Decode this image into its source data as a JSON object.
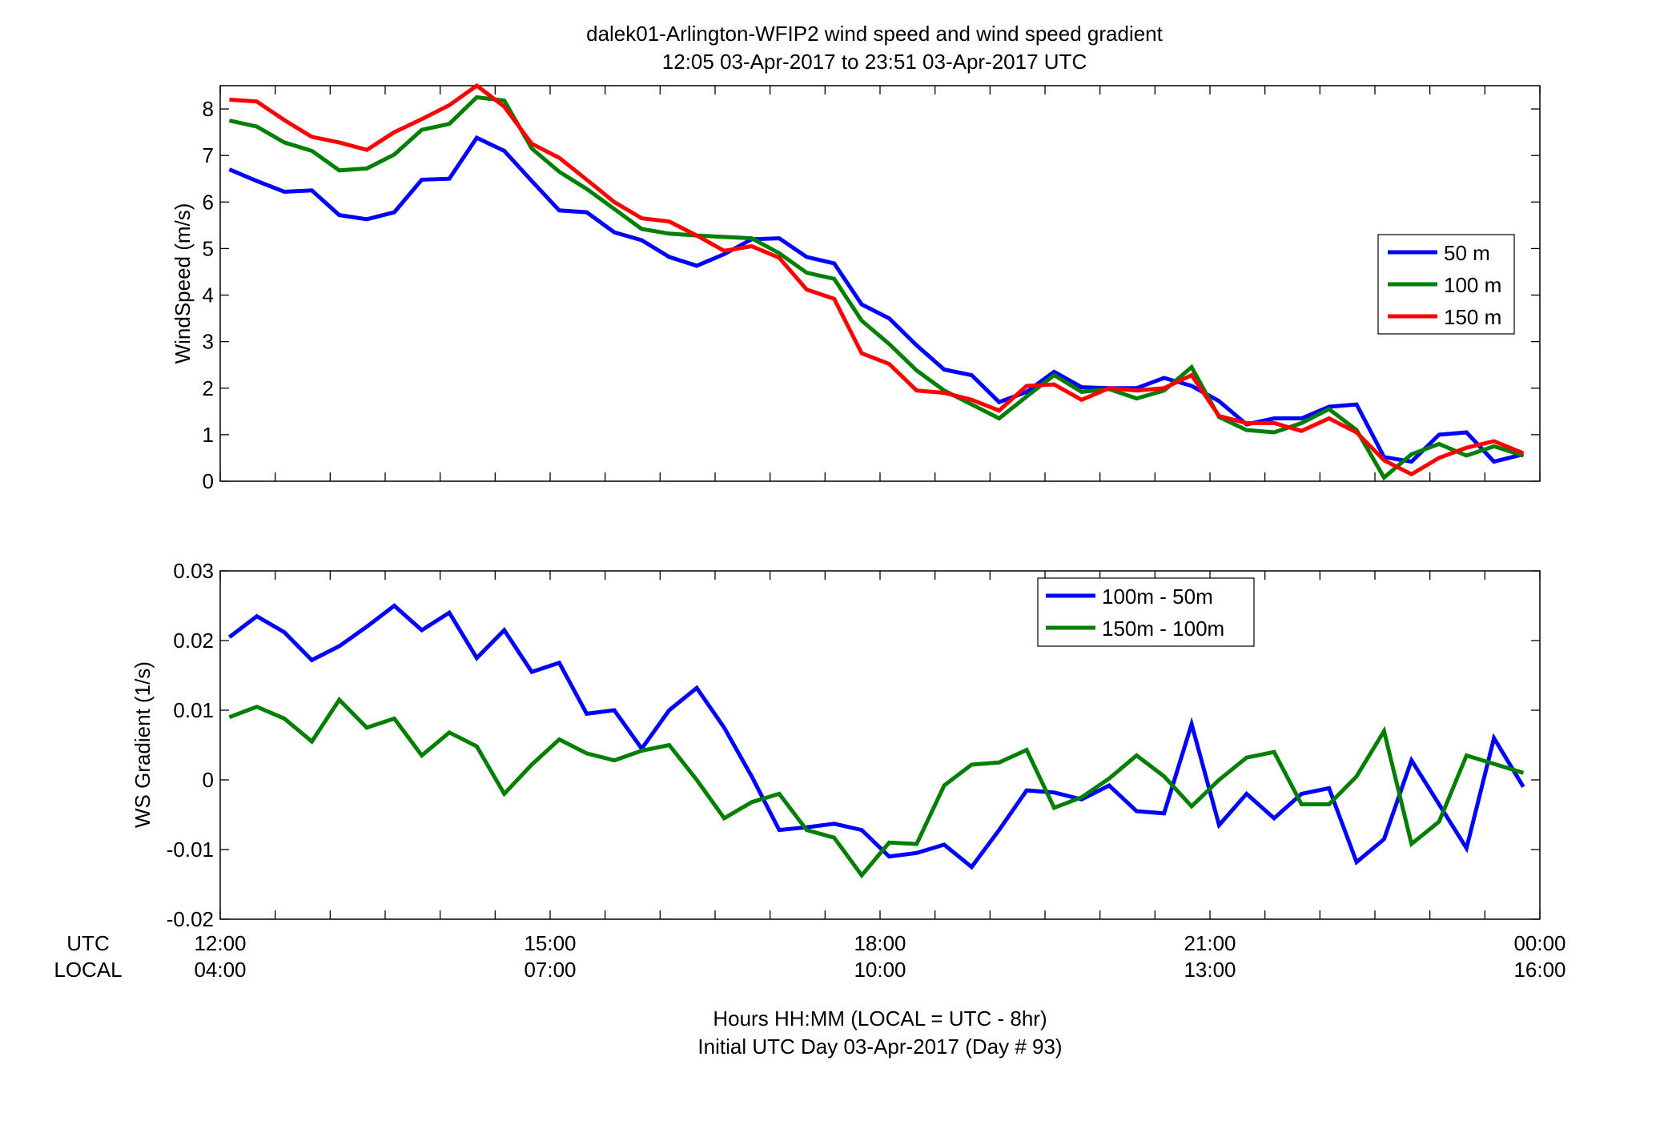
{
  "title": {
    "line1": "dalek01-Arlington-WFIP2  wind speed and wind speed gradient",
    "line2": "12:05 03-Apr-2017 to 23:51 03-Apr-2017  UTC"
  },
  "xaxis": {
    "row_label_utc": "UTC",
    "row_label_local": "LOCAL",
    "utc_ticks": [
      "12:00",
      "15:00",
      "18:00",
      "21:00",
      "00:00"
    ],
    "local_ticks": [
      "04:00",
      "07:00",
      "10:00",
      "13:00",
      "16:00"
    ],
    "xlabel_line1": "Hours HH:MM  (LOCAL = UTC - 8hr)",
    "xlabel_line2": "Initial UTC Day 03-Apr-2017 (Day # 93)"
  },
  "colors": {
    "blue": "#0000ff",
    "green": "#007f00",
    "red": "#ff0000"
  },
  "chart_data": [
    {
      "type": "line",
      "ylabel": "WindSpeed (m/s)",
      "xlim": [
        12,
        24
      ],
      "ylim": [
        0,
        8.5
      ],
      "yticks": [
        0,
        1,
        2,
        3,
        4,
        5,
        6,
        7,
        8
      ],
      "xticks": [
        12,
        12.5,
        13,
        13.5,
        14,
        14.5,
        15,
        15.5,
        16,
        16.5,
        17,
        17.5,
        18,
        18.5,
        19,
        19.5,
        20,
        20.5,
        21,
        21.5,
        22,
        22.5,
        23,
        23.5,
        24
      ],
      "legend_position": "right",
      "x": [
        12.083,
        12.333,
        12.583,
        12.833,
        13.083,
        13.333,
        13.583,
        13.833,
        14.083,
        14.333,
        14.583,
        14.833,
        15.083,
        15.333,
        15.583,
        15.833,
        16.083,
        16.333,
        16.583,
        16.833,
        17.083,
        17.333,
        17.583,
        17.833,
        18.083,
        18.333,
        18.583,
        18.833,
        19.083,
        19.333,
        19.583,
        19.833,
        20.083,
        20.333,
        20.583,
        20.833,
        21.083,
        21.333,
        21.583,
        21.833,
        22.083,
        22.333,
        22.583,
        22.833,
        23.083,
        23.333,
        23.583,
        23.85
      ],
      "series": [
        {
          "name": "50 m",
          "color": "#0000ff",
          "values": [
            6.7,
            6.45,
            6.22,
            6.25,
            5.72,
            5.63,
            5.78,
            6.48,
            6.5,
            7.38,
            7.1,
            6.45,
            5.82,
            5.78,
            5.35,
            5.18,
            4.82,
            4.63,
            4.88,
            5.2,
            5.22,
            4.82,
            4.68,
            3.8,
            3.5,
            2.92,
            2.4,
            2.28,
            1.7,
            1.92,
            2.35,
            2.02,
            2.0,
            2.0,
            2.22,
            2.05,
            1.72,
            1.22,
            1.35,
            1.35,
            1.6,
            1.65,
            0.52,
            0.42,
            1.0,
            1.05,
            0.42,
            0.58
          ]
        },
        {
          "name": "100 m",
          "color": "#007f00",
          "values": [
            7.75,
            7.62,
            7.28,
            7.1,
            6.68,
            6.72,
            7.02,
            7.55,
            7.68,
            8.25,
            8.18,
            7.15,
            6.65,
            6.28,
            5.85,
            5.42,
            5.32,
            5.28,
            5.25,
            5.22,
            4.9,
            4.48,
            4.35,
            3.45,
            2.95,
            2.38,
            1.95,
            1.65,
            1.35,
            1.82,
            2.28,
            1.92,
            1.98,
            1.78,
            1.95,
            2.45,
            1.38,
            1.1,
            1.05,
            1.25,
            1.55,
            1.1,
            0.08,
            0.58,
            0.8,
            0.55,
            0.75,
            0.55
          ]
        },
        {
          "name": "150 m",
          "color": "#ff0000",
          "values": [
            8.2,
            8.16,
            7.76,
            7.4,
            7.28,
            7.12,
            7.5,
            7.78,
            8.08,
            8.5,
            8.05,
            7.25,
            6.95,
            6.48,
            6.0,
            5.65,
            5.58,
            5.28,
            4.95,
            5.05,
            4.8,
            4.12,
            3.92,
            2.75,
            2.52,
            1.95,
            1.9,
            1.75,
            1.52,
            2.05,
            2.08,
            1.75,
            2.0,
            1.95,
            2.0,
            2.28,
            1.4,
            1.25,
            1.25,
            1.08,
            1.35,
            1.05,
            0.45,
            0.15,
            0.5,
            0.72,
            0.86,
            0.6
          ]
        }
      ]
    },
    {
      "type": "line",
      "ylabel": "WS Gradient (1/s)",
      "xlim": [
        12,
        24
      ],
      "ylim": [
        -0.02,
        0.03
      ],
      "yticks": [
        -0.02,
        -0.01,
        0,
        0.01,
        0.02,
        0.03
      ],
      "ytick_labels": [
        "-0.02",
        "-0.01",
        "0",
        "0.01",
        "0.02",
        "0.03"
      ],
      "xticks": [
        12,
        12.5,
        13,
        13.5,
        14,
        14.5,
        15,
        15.5,
        16,
        16.5,
        17,
        17.5,
        18,
        18.5,
        19,
        19.5,
        20,
        20.5,
        21,
        21.5,
        22,
        22.5,
        23,
        23.5,
        24
      ],
      "legend_position": "top-right",
      "x": [
        12.083,
        12.333,
        12.583,
        12.833,
        13.083,
        13.333,
        13.583,
        13.833,
        14.083,
        14.333,
        14.583,
        14.833,
        15.083,
        15.333,
        15.583,
        15.833,
        16.083,
        16.333,
        16.583,
        16.833,
        17.083,
        17.333,
        17.583,
        17.833,
        18.083,
        18.333,
        18.583,
        18.833,
        19.083,
        19.333,
        19.583,
        19.833,
        20.083,
        20.333,
        20.583,
        20.833,
        21.083,
        21.333,
        21.583,
        21.833,
        22.083,
        22.333,
        22.583,
        22.833,
        23.083,
        23.333,
        23.583,
        23.85
      ],
      "series": [
        {
          "name": "100m - 50m",
          "color": "#0000ff",
          "values": [
            0.0205,
            0.0235,
            0.0212,
            0.0172,
            0.0192,
            0.022,
            0.025,
            0.0215,
            0.024,
            0.0175,
            0.0215,
            0.0155,
            0.0168,
            0.0095,
            0.01,
            0.0045,
            0.01,
            0.0132,
            0.0075,
            0.0005,
            -0.0072,
            -0.0068,
            -0.0063,
            -0.0072,
            -0.011,
            -0.0105,
            -0.0093,
            -0.0125,
            -0.0072,
            -0.0015,
            -0.0018,
            -0.0028,
            -0.0008,
            -0.0045,
            -0.0048,
            0.008,
            -0.0065,
            -0.002,
            -0.0055,
            -0.002,
            -0.0012,
            -0.0118,
            -0.0085,
            0.0028,
            -0.0035,
            -0.0098,
            0.006,
            -0.001
          ]
        },
        {
          "name": "150m - 100m",
          "color": "#007f00",
          "values": [
            0.009,
            0.0105,
            0.0088,
            0.0055,
            0.0115,
            0.0075,
            0.0088,
            0.0035,
            0.0068,
            0.0048,
            -0.002,
            0.0022,
            0.0058,
            0.0038,
            0.0028,
            0.0042,
            0.005,
            0.0,
            -0.0055,
            -0.0032,
            -0.002,
            -0.0072,
            -0.0083,
            -0.0137,
            -0.009,
            -0.0092,
            -0.0008,
            0.0022,
            0.0025,
            0.0043,
            -0.004,
            -0.0025,
            0.0002,
            0.0035,
            0.0005,
            -0.0038,
            0.0,
            0.0032,
            0.004,
            -0.0035,
            -0.0035,
            0.0005,
            0.007,
            -0.0092,
            -0.006,
            0.0035,
            0.0023,
            0.001
          ]
        }
      ]
    }
  ]
}
